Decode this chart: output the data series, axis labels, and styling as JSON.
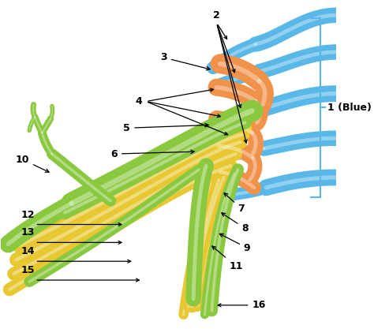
{
  "bg_color": "#ffffff",
  "colors": {
    "blue": "#5ab8e8",
    "blue_dark": "#3a9fd8",
    "orange": "#f0924a",
    "orange_dark": "#d07030",
    "yellow": "#e8c832",
    "yellow_dark": "#c8a010",
    "green": "#8ac840",
    "green_dark": "#5a9620",
    "black": "#000000"
  },
  "bracket_color": "#5ab8e8",
  "label_fontsize": 9,
  "label_color": "#000000"
}
